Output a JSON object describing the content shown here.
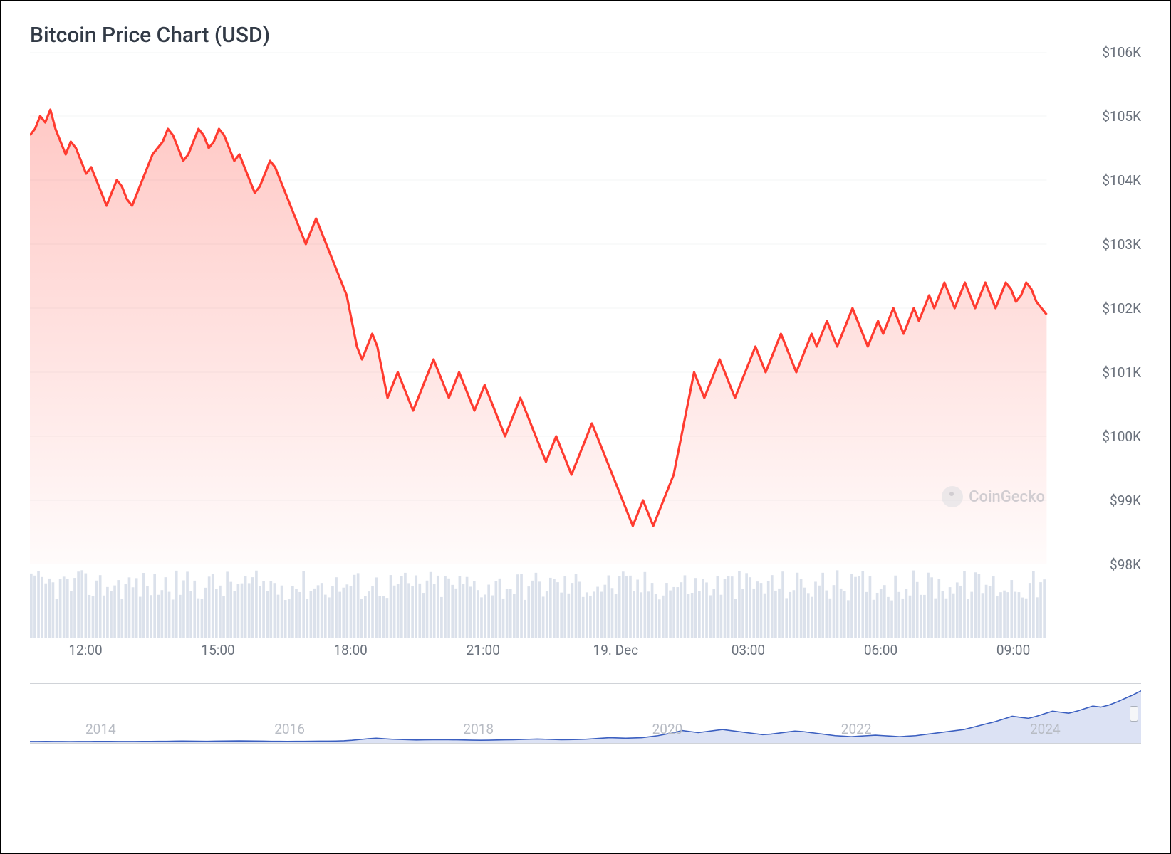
{
  "title": "Bitcoin Price Chart (USD)",
  "watermark": "CoinGecko",
  "main_chart": {
    "type": "area",
    "ylim": [
      98000,
      106000
    ],
    "ytick_step": 1000,
    "ytick_labels": [
      "$98K",
      "$99K",
      "$100K",
      "$101K",
      "$102K",
      "$103K",
      "$104K",
      "$105K",
      "$106K"
    ],
    "x_labels": [
      "12:00",
      "15:00",
      "18:00",
      "21:00",
      "19. Dec",
      "03:00",
      "06:00",
      "09:00"
    ],
    "x_label_positions_pct": [
      7,
      27.5,
      48,
      68.5,
      89,
      109.5,
      130,
      150.5
    ],
    "line_color": "#ff3b30",
    "line_width": 2.4,
    "fill_top_color": "rgba(255,59,48,0.28)",
    "fill_bottom_color": "rgba(255,59,48,0.02)",
    "gridline_color": "#eff0f2",
    "background_color": "#ffffff",
    "title_color": "#323a46",
    "title_fontsize": 30,
    "axis_label_color": "#6a717c",
    "axis_label_fontsize": 19,
    "values": [
      104700,
      104800,
      105000,
      104900,
      105100,
      104800,
      104600,
      104400,
      104600,
      104500,
      104300,
      104100,
      104200,
      104000,
      103800,
      103600,
      103800,
      104000,
      103900,
      103700,
      103600,
      103800,
      104000,
      104200,
      104400,
      104500,
      104600,
      104800,
      104700,
      104500,
      104300,
      104400,
      104600,
      104800,
      104700,
      104500,
      104600,
      104800,
      104700,
      104500,
      104300,
      104400,
      104200,
      104000,
      103800,
      103900,
      104100,
      104300,
      104200,
      104000,
      103800,
      103600,
      103400,
      103200,
      103000,
      103200,
      103400,
      103200,
      103000,
      102800,
      102600,
      102400,
      102200,
      101800,
      101400,
      101200,
      101400,
      101600,
      101400,
      101000,
      100600,
      100800,
      101000,
      100800,
      100600,
      100400,
      100600,
      100800,
      101000,
      101200,
      101000,
      100800,
      100600,
      100800,
      101000,
      100800,
      100600,
      100400,
      100600,
      100800,
      100600,
      100400,
      100200,
      100000,
      100200,
      100400,
      100600,
      100400,
      100200,
      100000,
      99800,
      99600,
      99800,
      100000,
      99800,
      99600,
      99400,
      99600,
      99800,
      100000,
      100200,
      100000,
      99800,
      99600,
      99400,
      99200,
      99000,
      98800,
      98600,
      98800,
      99000,
      98800,
      98600,
      98800,
      99000,
      99200,
      99400,
      99800,
      100200,
      100600,
      101000,
      100800,
      100600,
      100800,
      101000,
      101200,
      101000,
      100800,
      100600,
      100800,
      101000,
      101200,
      101400,
      101200,
      101000,
      101200,
      101400,
      101600,
      101400,
      101200,
      101000,
      101200,
      101400,
      101600,
      101400,
      101600,
      101800,
      101600,
      101400,
      101600,
      101800,
      102000,
      101800,
      101600,
      101400,
      101600,
      101800,
      101600,
      101800,
      102000,
      101800,
      101600,
      101800,
      102000,
      101800,
      102000,
      102200,
      102000,
      102200,
      102400,
      102200,
      102000,
      102200,
      102400,
      102200,
      102000,
      102200,
      102400,
      102200,
      102000,
      102200,
      102400,
      102300,
      102100,
      102200,
      102400,
      102300,
      102100,
      102000,
      101900
    ]
  },
  "volume_chart": {
    "type": "bar",
    "bar_color": "#dbe1eb",
    "bar_count": 280,
    "min_height_pct": 55,
    "max_height_pct": 100
  },
  "navigator": {
    "type": "area",
    "line_color": "#3b5fc0",
    "fill_color": "rgba(59,95,192,0.18)",
    "label_color": "#b8bcc4",
    "year_labels": [
      "2014",
      "2016",
      "2018",
      "2020",
      "2022",
      "2024"
    ],
    "year_positions_pct": [
      5,
      22,
      39,
      56,
      73,
      90
    ],
    "values": [
      0.5,
      0.6,
      0.7,
      0.6,
      0.5,
      0.4,
      0.5,
      0.6,
      0.7,
      0.8,
      0.7,
      0.6,
      0.5,
      0.6,
      0.7,
      0.8,
      0.9,
      1.0,
      1.2,
      1.5,
      1.3,
      1.1,
      1.0,
      1.2,
      1.4,
      1.6,
      1.8,
      1.6,
      1.4,
      1.2,
      1.0,
      0.9,
      0.8,
      0.9,
      1.0,
      1.1,
      1.2,
      1.3,
      1.5,
      2.0,
      3.0,
      4.5,
      6.0,
      7.0,
      6.0,
      5.0,
      4.5,
      4.0,
      3.5,
      3.8,
      4.0,
      4.2,
      4.0,
      3.8,
      3.5,
      3.2,
      3.0,
      3.2,
      3.5,
      3.8,
      4.0,
      4.5,
      5.0,
      5.5,
      5.0,
      4.5,
      4.0,
      4.2,
      4.5,
      5.0,
      6.0,
      7.0,
      8.0,
      7.5,
      7.0,
      7.5,
      8.0,
      10.0,
      12.0,
      15.0,
      18.0,
      22.0,
      20.0,
      18.0,
      20.0,
      22.0,
      24.0,
      22.0,
      20.0,
      18.0,
      16.0,
      14.0,
      15.0,
      17.0,
      19.0,
      21.0,
      20.0,
      18.0,
      16.0,
      14.0,
      12.0,
      11.0,
      10.0,
      11.0,
      12.0,
      13.0,
      12.0,
      11.0,
      10.0,
      11.0,
      12.0,
      14.0,
      16.0,
      18.0,
      20.0,
      22.0,
      24.0,
      28.0,
      32.0,
      36.0,
      40.0,
      45.0,
      50.0,
      48.0,
      46.0,
      50.0,
      55.0,
      60.0,
      58.0,
      56.0,
      60.0,
      65.0,
      70.0,
      68.0,
      72.0,
      78.0,
      85.0,
      92.0,
      100.0
    ],
    "ymax": 110
  }
}
